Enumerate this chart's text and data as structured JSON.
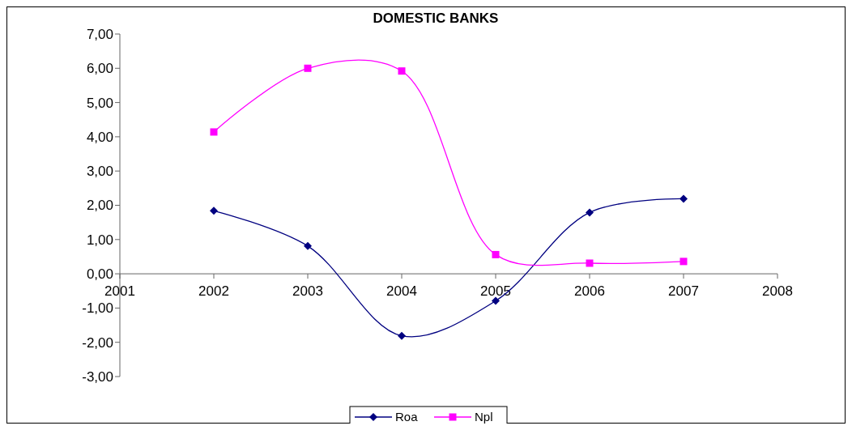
{
  "chart_data": {
    "type": "line",
    "title": "DOMESTIC BANKS",
    "x": [
      2002,
      2003,
      2004,
      2005,
      2006,
      2007
    ],
    "xlim": [
      2001,
      2008
    ],
    "xticks": [
      2001,
      2002,
      2003,
      2004,
      2005,
      2006,
      2007,
      2008
    ],
    "ylim": [
      -3,
      7
    ],
    "yticks": [
      {
        "value": -3,
        "label": "-3,00"
      },
      {
        "value": -2,
        "label": "-2,00"
      },
      {
        "value": -1,
        "label": "-1,00"
      },
      {
        "value": 0,
        "label": "0,00"
      },
      {
        "value": 1,
        "label": "1,00"
      },
      {
        "value": 2,
        "label": "2,00"
      },
      {
        "value": 3,
        "label": "3,00"
      },
      {
        "value": 4,
        "label": "4,00"
      },
      {
        "value": 5,
        "label": "5,00"
      },
      {
        "value": 6,
        "label": "6,00"
      },
      {
        "value": 7,
        "label": "7,00"
      }
    ],
    "series": [
      {
        "name": "Roa",
        "color": "#000080",
        "marker": "diamond",
        "values": [
          1.84,
          0.81,
          -1.81,
          -0.79,
          1.79,
          2.19
        ]
      },
      {
        "name": "Npl",
        "color": "#ff00ff",
        "marker": "square",
        "values": [
          4.14,
          6.0,
          5.92,
          0.56,
          0.31,
          0.36
        ]
      }
    ],
    "grid": false,
    "legend": "bottom"
  }
}
